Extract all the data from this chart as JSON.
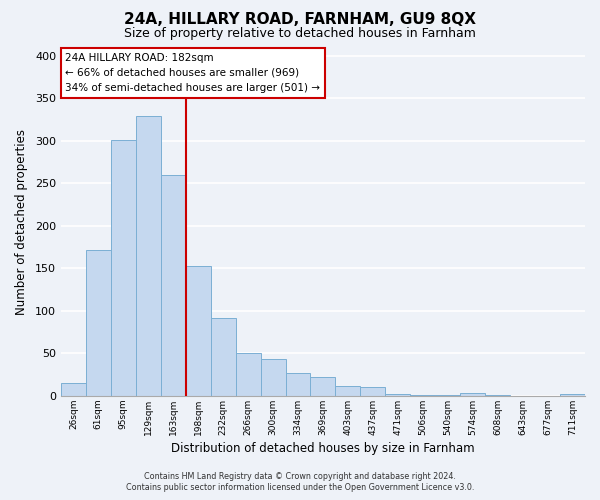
{
  "title": "24A, HILLARY ROAD, FARNHAM, GU9 8QX",
  "subtitle": "Size of property relative to detached houses in Farnham",
  "xlabel": "Distribution of detached houses by size in Farnham",
  "ylabel": "Number of detached properties",
  "bin_labels": [
    "26sqm",
    "61sqm",
    "95sqm",
    "129sqm",
    "163sqm",
    "198sqm",
    "232sqm",
    "266sqm",
    "300sqm",
    "334sqm",
    "369sqm",
    "403sqm",
    "437sqm",
    "471sqm",
    "506sqm",
    "540sqm",
    "574sqm",
    "608sqm",
    "643sqm",
    "677sqm",
    "711sqm"
  ],
  "bar_heights": [
    15,
    172,
    301,
    329,
    260,
    153,
    92,
    50,
    43,
    27,
    22,
    12,
    10,
    2,
    1,
    1,
    3,
    1,
    0,
    0,
    2
  ],
  "bar_color": "#c5d8ef",
  "bar_edge_color": "#7bafd4",
  "vline_x_index": 5,
  "vline_color": "#cc0000",
  "ylim": [
    0,
    410
  ],
  "yticks": [
    0,
    50,
    100,
    150,
    200,
    250,
    300,
    350,
    400
  ],
  "annotation_title": "24A HILLARY ROAD: 182sqm",
  "annotation_line1": "← 66% of detached houses are smaller (969)",
  "annotation_line2": "34% of semi-detached houses are larger (501) →",
  "annotation_box_facecolor": "#ffffff",
  "annotation_box_edgecolor": "#cc0000",
  "footnote1": "Contains HM Land Registry data © Crown copyright and database right 2024.",
  "footnote2": "Contains public sector information licensed under the Open Government Licence v3.0.",
  "background_color": "#eef2f8",
  "grid_color": "#ffffff",
  "spine_color": "#aaaaaa"
}
